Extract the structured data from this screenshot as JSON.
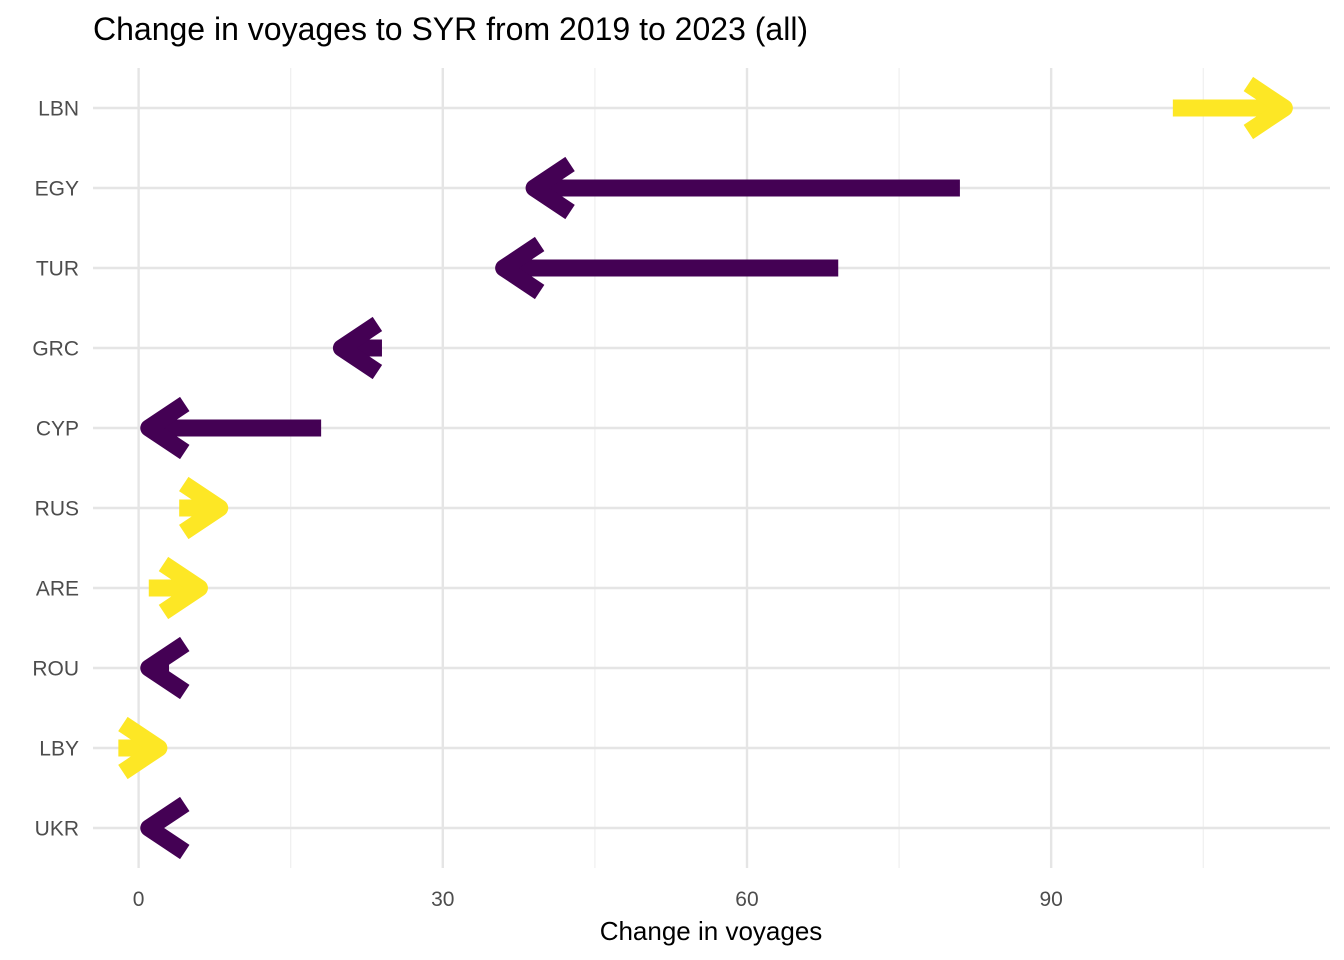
{
  "chart_data": {
    "type": "arrow",
    "title": "Change in voyages to SYR from 2019 to 2023 (all)",
    "xlabel": "Change in voyages",
    "ylabel": "",
    "xlim": [
      -4.5,
      117.5
    ],
    "x_ticks": [
      0,
      30,
      60,
      90
    ],
    "x_minor_ticks": [
      15,
      45,
      75,
      105
    ],
    "grid": true,
    "legend": "none",
    "colors": {
      "increase": "#fde725",
      "decrease": "#440154"
    },
    "categories": [
      "LBN",
      "EGY",
      "TUR",
      "GRC",
      "CYP",
      "RUS",
      "ARE",
      "ROU",
      "LBY",
      "UKR"
    ],
    "segments": [
      {
        "label": "LBN",
        "from": 102,
        "to": 113,
        "direction": "increase"
      },
      {
        "label": "EGY",
        "from": 81,
        "to": 39,
        "direction": "decrease"
      },
      {
        "label": "TUR",
        "from": 69,
        "to": 36,
        "direction": "decrease"
      },
      {
        "label": "GRC",
        "from": 24,
        "to": 20,
        "direction": "decrease"
      },
      {
        "label": "CYP",
        "from": 18,
        "to": 1,
        "direction": "decrease"
      },
      {
        "label": "RUS",
        "from": 4,
        "to": 8,
        "direction": "increase"
      },
      {
        "label": "ARE",
        "from": 1,
        "to": 6,
        "direction": "increase"
      },
      {
        "label": "ROU",
        "from": 3,
        "to": 1,
        "direction": "decrease"
      },
      {
        "label": "LBY",
        "from": -2,
        "to": 2,
        "direction": "increase"
      },
      {
        "label": "UKR",
        "from": 1,
        "to": 1,
        "direction": "decrease"
      }
    ]
  }
}
